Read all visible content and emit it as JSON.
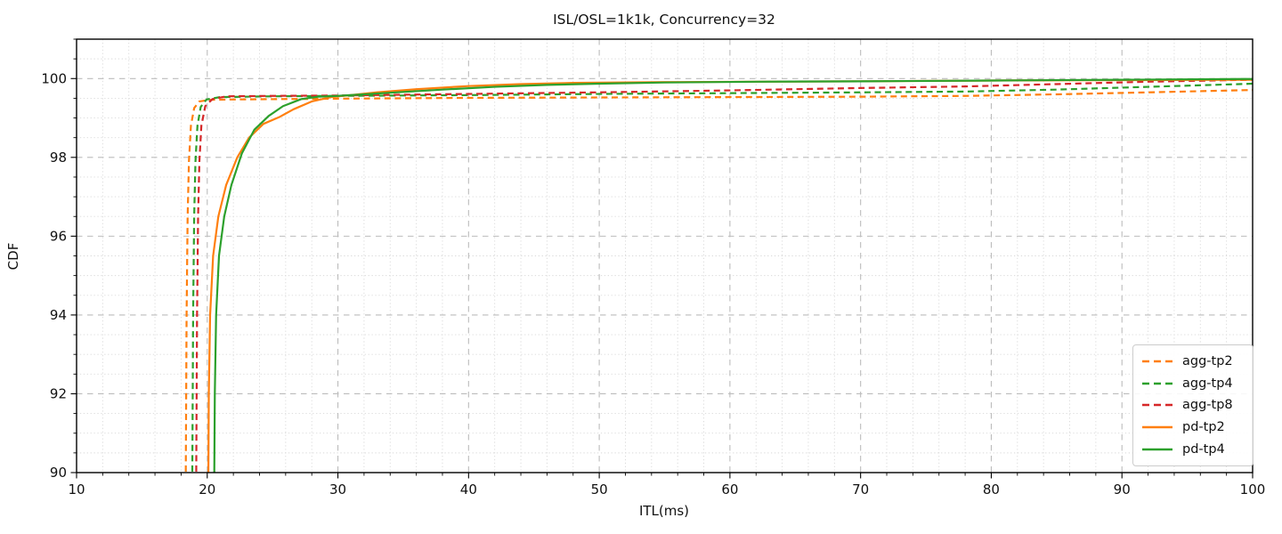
{
  "figure": {
    "title": "ISL/OSL=1k1k, Concurrency=32"
  },
  "chart_data": {
    "type": "line",
    "title": "ISL/OSL=1k1k, Concurrency=32",
    "xlabel": "ITL(ms)",
    "ylabel": "CDF",
    "xlim": [
      10,
      100
    ],
    "ylim": [
      90,
      101
    ],
    "x_major_ticks": [
      10,
      20,
      30,
      40,
      50,
      60,
      70,
      80,
      90,
      100
    ],
    "y_major_ticks": [
      90,
      92,
      94,
      96,
      98,
      100
    ],
    "x_minor_step": 2,
    "y_minor_step": 0.5,
    "grid": {
      "major_style": "dashed",
      "minor_style": "dotted",
      "major_color": "#bcbcbc",
      "minor_color": "#d9d9d9"
    },
    "legend_position": "lower right",
    "series": [
      {
        "name": "agg-tp2",
        "color": "#ff7f0e",
        "line_style": "dashed",
        "points": [
          [
            18.35,
            89.5
          ],
          [
            18.42,
            94
          ],
          [
            18.5,
            96.5
          ],
          [
            18.6,
            97.9
          ],
          [
            18.75,
            98.8
          ],
          [
            19.0,
            99.25
          ],
          [
            19.4,
            99.42
          ],
          [
            20.2,
            99.46
          ],
          [
            22,
            99.47
          ],
          [
            30,
            99.49
          ],
          [
            40,
            99.51
          ],
          [
            50,
            99.52
          ],
          [
            60,
            99.53
          ],
          [
            70,
            99.54
          ],
          [
            78,
            99.56
          ],
          [
            85,
            99.6
          ],
          [
            92,
            99.65
          ],
          [
            100,
            99.71
          ]
        ]
      },
      {
        "name": "agg-tp4",
        "color": "#2ca02c",
        "line_style": "dashed",
        "points": [
          [
            18.85,
            89.5
          ],
          [
            18.92,
            94
          ],
          [
            19.0,
            96.5
          ],
          [
            19.1,
            97.9
          ],
          [
            19.25,
            98.8
          ],
          [
            19.5,
            99.28
          ],
          [
            19.95,
            99.47
          ],
          [
            21,
            99.53
          ],
          [
            25,
            99.55
          ],
          [
            30,
            99.56
          ],
          [
            40,
            99.58
          ],
          [
            50,
            99.61
          ],
          [
            60,
            99.63
          ],
          [
            70,
            99.65
          ],
          [
            78,
            99.67
          ],
          [
            85,
            99.72
          ],
          [
            92,
            99.79
          ],
          [
            100,
            99.87
          ]
        ]
      },
      {
        "name": "agg-tp8",
        "color": "#d62728",
        "line_style": "dashed",
        "points": [
          [
            19.15,
            89.5
          ],
          [
            19.22,
            94
          ],
          [
            19.3,
            96.5
          ],
          [
            19.4,
            97.9
          ],
          [
            19.55,
            98.8
          ],
          [
            19.85,
            99.3
          ],
          [
            20.4,
            99.48
          ],
          [
            21.5,
            99.55
          ],
          [
            25,
            99.56
          ],
          [
            30,
            99.57
          ],
          [
            40,
            99.61
          ],
          [
            50,
            99.65
          ],
          [
            60,
            99.7
          ],
          [
            70,
            99.76
          ],
          [
            78,
            99.8
          ],
          [
            85,
            99.86
          ],
          [
            92,
            99.92
          ],
          [
            100,
            99.97
          ]
        ]
      },
      {
        "name": "pd-tp2",
        "color": "#ff7f0e",
        "line_style": "solid",
        "points": [
          [
            20.08,
            89.5
          ],
          [
            20.12,
            92
          ],
          [
            20.22,
            94
          ],
          [
            20.45,
            95.5
          ],
          [
            20.85,
            96.5
          ],
          [
            21.45,
            97.3
          ],
          [
            22.3,
            98.0
          ],
          [
            23.2,
            98.5
          ],
          [
            24.3,
            98.85
          ],
          [
            25.5,
            99.02
          ],
          [
            26.6,
            99.22
          ],
          [
            28,
            99.42
          ],
          [
            29.5,
            99.53
          ],
          [
            31,
            99.58
          ],
          [
            33,
            99.65
          ],
          [
            36,
            99.73
          ],
          [
            40,
            99.81
          ],
          [
            44,
            99.86
          ],
          [
            48,
            99.89
          ],
          [
            55,
            99.91
          ],
          [
            62,
            99.92
          ],
          [
            70,
            99.93
          ],
          [
            80,
            99.95
          ],
          [
            90,
            99.96
          ],
          [
            100,
            99.97
          ]
        ]
      },
      {
        "name": "pd-tp4",
        "color": "#2ca02c",
        "line_style": "solid",
        "points": [
          [
            20.53,
            89.5
          ],
          [
            20.58,
            92
          ],
          [
            20.68,
            94
          ],
          [
            20.9,
            95.5
          ],
          [
            21.3,
            96.5
          ],
          [
            21.85,
            97.3
          ],
          [
            22.65,
            98.1
          ],
          [
            23.6,
            98.7
          ],
          [
            24.7,
            99.05
          ],
          [
            25.8,
            99.3
          ],
          [
            27.2,
            99.48
          ],
          [
            28.5,
            99.54
          ],
          [
            30,
            99.56
          ],
          [
            32,
            99.6
          ],
          [
            35,
            99.66
          ],
          [
            38,
            99.72
          ],
          [
            42,
            99.79
          ],
          [
            46,
            99.84
          ],
          [
            50,
            99.87
          ],
          [
            55,
            99.9
          ],
          [
            62,
            99.92
          ],
          [
            70,
            99.93
          ],
          [
            80,
            99.95
          ],
          [
            90,
            99.97
          ],
          [
            100,
            99.99
          ]
        ]
      }
    ]
  },
  "style": {
    "spine_color": "#000000",
    "tick_color": "#000000",
    "text_color": "#111111"
  }
}
